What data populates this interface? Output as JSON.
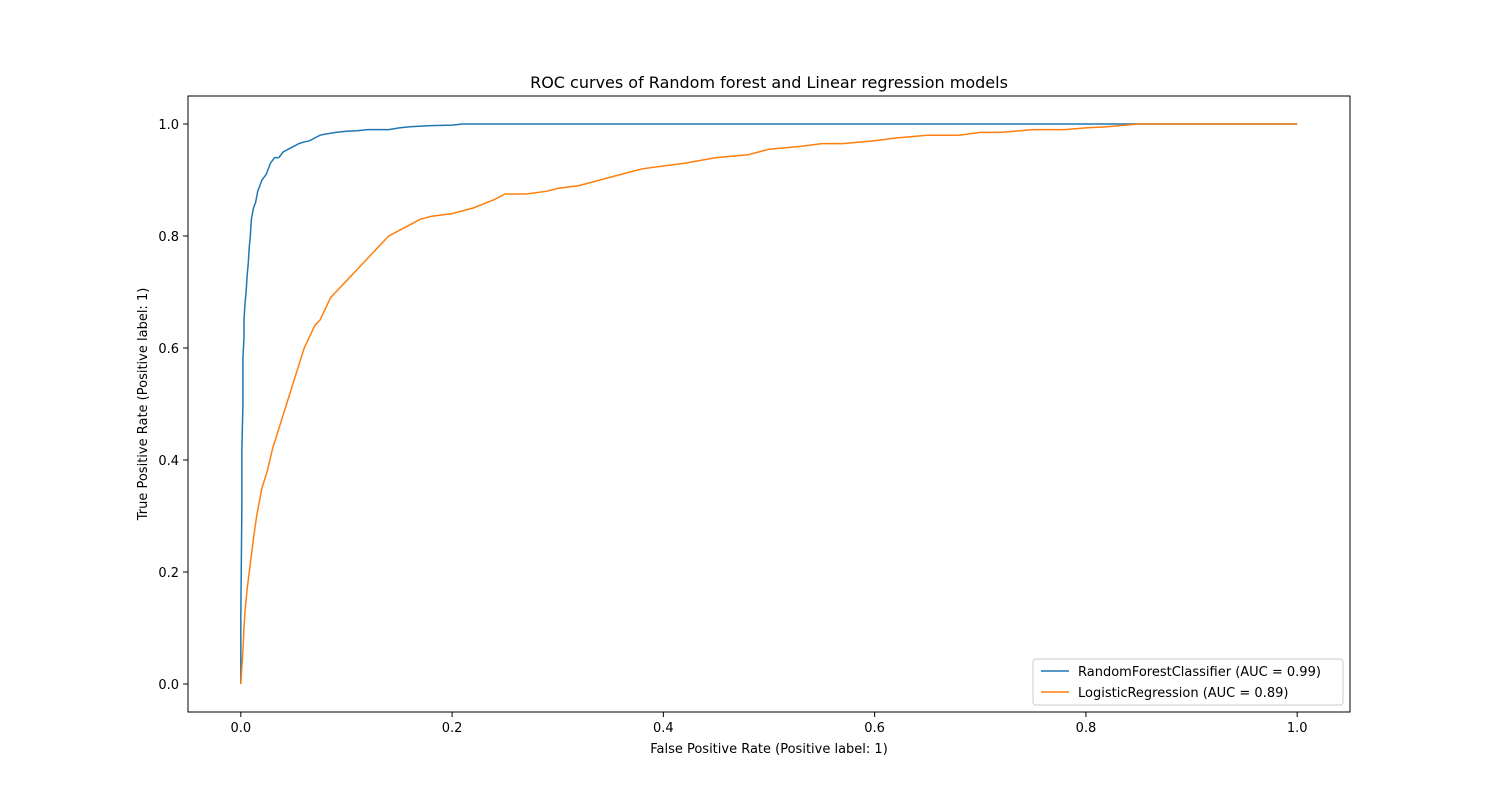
{
  "chart_data": {
    "type": "line",
    "title": "ROC curves of Random forest and Linear regression models",
    "xlabel": "False Positive Rate (Positive label: 1)",
    "ylabel": "True Positive Rate (Positive label: 1)",
    "xlim": [
      -0.05,
      1.05
    ],
    "ylim": [
      -0.05,
      1.05
    ],
    "xticks": [
      0.0,
      0.2,
      0.4,
      0.6,
      0.8,
      1.0
    ],
    "yticks": [
      0.0,
      0.2,
      0.4,
      0.6,
      0.8,
      1.0
    ],
    "xtick_labels": [
      "0.0",
      "0.2",
      "0.4",
      "0.6",
      "0.8",
      "1.0"
    ],
    "ytick_labels": [
      "0.0",
      "0.2",
      "0.4",
      "0.6",
      "0.8",
      "1.0"
    ],
    "grid": false,
    "legend_position": "lower-right",
    "series": [
      {
        "name": "RandomForestClassifier (AUC = 0.99)",
        "color": "#1f77b4",
        "x": [
          0,
          0.0,
          0.001,
          0.001,
          0.002,
          0.002,
          0.003,
          0.003,
          0.004,
          0.005,
          0.006,
          0.007,
          0.008,
          0.009,
          0.01,
          0.012,
          0.014,
          0.016,
          0.018,
          0.02,
          0.024,
          0.028,
          0.032,
          0.036,
          0.04,
          0.045,
          0.05,
          0.055,
          0.06,
          0.065,
          0.07,
          0.075,
          0.08,
          0.09,
          0.1,
          0.11,
          0.12,
          0.14,
          0.15,
          0.16,
          0.18,
          0.2,
          0.21,
          0.5,
          0.8,
          1.0
        ],
        "y": [
          0,
          0.12,
          0.32,
          0.42,
          0.5,
          0.58,
          0.62,
          0.65,
          0.68,
          0.7,
          0.73,
          0.75,
          0.78,
          0.8,
          0.83,
          0.85,
          0.86,
          0.88,
          0.89,
          0.9,
          0.91,
          0.93,
          0.94,
          0.94,
          0.95,
          0.955,
          0.96,
          0.965,
          0.968,
          0.97,
          0.975,
          0.98,
          0.982,
          0.985,
          0.987,
          0.988,
          0.99,
          0.99,
          0.993,
          0.995,
          0.997,
          0.998,
          1.0,
          1.0,
          1.0,
          1.0
        ]
      },
      {
        "name": "LogisticRegression (AUC = 0.89)",
        "color": "#ff7f0e",
        "x": [
          0,
          0.001,
          0.002,
          0.003,
          0.004,
          0.006,
          0.008,
          0.01,
          0.012,
          0.015,
          0.018,
          0.02,
          0.025,
          0.03,
          0.035,
          0.04,
          0.045,
          0.05,
          0.055,
          0.06,
          0.065,
          0.07,
          0.075,
          0.08,
          0.085,
          0.09,
          0.1,
          0.11,
          0.12,
          0.13,
          0.14,
          0.15,
          0.16,
          0.17,
          0.18,
          0.2,
          0.22,
          0.24,
          0.25,
          0.27,
          0.29,
          0.3,
          0.32,
          0.34,
          0.36,
          0.38,
          0.4,
          0.42,
          0.45,
          0.48,
          0.5,
          0.53,
          0.55,
          0.57,
          0.6,
          0.62,
          0.65,
          0.68,
          0.7,
          0.72,
          0.75,
          0.78,
          0.8,
          0.82,
          0.85,
          0.9,
          0.95,
          1.0
        ],
        "y": [
          0,
          0.03,
          0.06,
          0.1,
          0.13,
          0.17,
          0.2,
          0.23,
          0.26,
          0.3,
          0.33,
          0.35,
          0.38,
          0.42,
          0.45,
          0.48,
          0.51,
          0.54,
          0.57,
          0.6,
          0.62,
          0.64,
          0.65,
          0.67,
          0.69,
          0.7,
          0.72,
          0.74,
          0.76,
          0.78,
          0.8,
          0.81,
          0.82,
          0.83,
          0.835,
          0.84,
          0.85,
          0.865,
          0.875,
          0.875,
          0.88,
          0.885,
          0.89,
          0.9,
          0.91,
          0.92,
          0.925,
          0.93,
          0.94,
          0.945,
          0.955,
          0.96,
          0.965,
          0.965,
          0.97,
          0.975,
          0.98,
          0.98,
          0.985,
          0.985,
          0.99,
          0.99,
          0.993,
          0.995,
          1.0,
          1.0,
          1.0,
          1.0
        ]
      }
    ]
  }
}
